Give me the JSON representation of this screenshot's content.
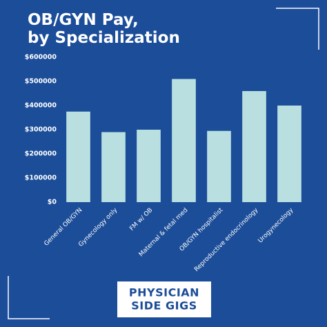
{
  "chart_data": {
    "type": "bar",
    "title": [
      "OB/GYN Pay,",
      "by Specialization"
    ],
    "categories": [
      "General OB/GYN",
      "Gynecology only",
      "FM w/ OB",
      "Maternal & fetal med",
      "OB/GYN hospitalist",
      "Reproductive endocrinology",
      "Urogynecology"
    ],
    "values": [
      375000,
      290000,
      300000,
      510000,
      295000,
      460000,
      400000
    ],
    "color": "#b9dfe0",
    "ylim": [
      0,
      600000
    ],
    "yticks": [
      {
        "value": 0,
        "label": "$0"
      },
      {
        "value": 100000,
        "label": "$100000"
      },
      {
        "value": 200000,
        "label": "$200000"
      },
      {
        "value": 300000,
        "label": "$300000"
      },
      {
        "value": 400000,
        "label": "$400000"
      },
      {
        "value": 500000,
        "label": "$500000"
      },
      {
        "value": 600000,
        "label": "$600000"
      }
    ],
    "grid": false
  },
  "brand": [
    "PHYSICIAN",
    "SIDE GIGS"
  ]
}
